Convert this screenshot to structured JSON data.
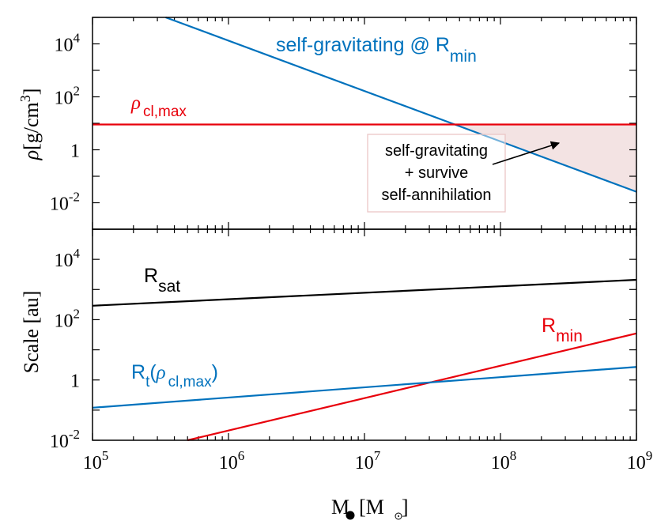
{
  "chart_data": [
    {
      "type": "line",
      "panel": "top",
      "ylabel": "ρ[g/cm³]",
      "ylabel_parts": {
        "symbol": "ρ",
        "open": "[g/cm",
        "sup": "3",
        "close": "]"
      },
      "xscale": "log",
      "yscale": "log",
      "xlim": [
        100000,
        1000000000
      ],
      "ylim": [
        0.001,
        100000
      ],
      "yticks": [
        {
          "value": 0.01,
          "base": "10",
          "exp": "-2"
        },
        {
          "value": 1,
          "base": "1",
          "exp": ""
        },
        {
          "value": 100,
          "base": "10",
          "exp": "2"
        },
        {
          "value": 10000,
          "base": "10",
          "exp": "4"
        }
      ],
      "series": [
        {
          "name": "self-gravitating @ R_min",
          "color": "#0072BD",
          "x": [
            345000,
            1000000000
          ],
          "y": [
            100000,
            0.026
          ]
        },
        {
          "name": "ρ_cl,max",
          "color": "#E8000B",
          "x": [
            100000,
            1000000000
          ],
          "y": [
            9.0,
            9.0
          ]
        }
      ],
      "shaded_region": {
        "color": "#f3e3e3",
        "label": "self-gravitating + survive self-annihilation"
      },
      "annotations": {
        "blue_label": {
          "text": "self-gravitating @ R",
          "sub": "min"
        },
        "red_label": {
          "symbol": "ρ",
          "sub": "cl,max"
        },
        "box_lines": [
          "self-gravitating",
          "+ survive",
          "self-annihilation"
        ]
      }
    },
    {
      "type": "line",
      "panel": "bottom",
      "ylabel": "Scale [au]",
      "xlabel_parts": {
        "main": "M",
        "open": "[M",
        "close": "]"
      },
      "xscale": "log",
      "yscale": "log",
      "xlim": [
        100000,
        1000000000
      ],
      "ylim": [
        0.01,
        100000
      ],
      "xticks": [
        {
          "value": 100000,
          "base": "10",
          "exp": "5"
        },
        {
          "value": 1000000,
          "base": "10",
          "exp": "6"
        },
        {
          "value": 10000000,
          "base": "10",
          "exp": "7"
        },
        {
          "value": 100000000,
          "base": "10",
          "exp": "8"
        },
        {
          "value": 1000000000,
          "base": "10",
          "exp": "9"
        }
      ],
      "yticks": [
        {
          "value": 0.01,
          "base": "10",
          "exp": "-2"
        },
        {
          "value": 1,
          "base": "1",
          "exp": ""
        },
        {
          "value": 100,
          "base": "10",
          "exp": "2"
        },
        {
          "value": 10000,
          "base": "10",
          "exp": "4"
        }
      ],
      "series": [
        {
          "name": "R_sat",
          "color": "#000000",
          "x": [
            100000,
            1000000000
          ],
          "y": [
            290,
            2100
          ]
        },
        {
          "name": "R_min",
          "color": "#E8000B",
          "x": [
            500000,
            1000000000
          ],
          "y": [
            0.01,
            35
          ]
        },
        {
          "name": "R_t(ρ_cl,max)",
          "color": "#0072BD",
          "x": [
            100000,
            1000000000
          ],
          "y": [
            0.12,
            2.7
          ]
        }
      ],
      "annotations": {
        "rsat": {
          "text": "R",
          "sub": "sat"
        },
        "rmin": {
          "text": "R",
          "sub": "min"
        },
        "rt": {
          "text": "R",
          "sub": "t",
          "open": "(",
          "symbol": "ρ",
          "sub2": "cl,max",
          "close": ")"
        }
      }
    }
  ]
}
